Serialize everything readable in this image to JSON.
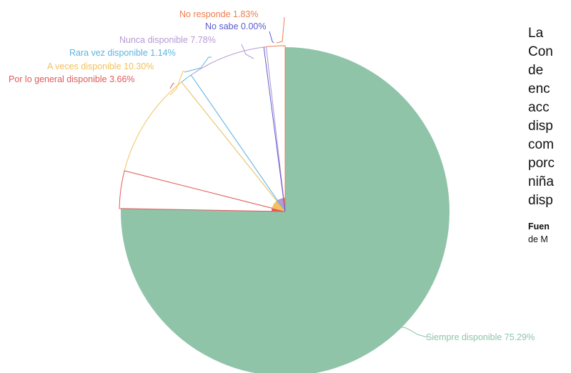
{
  "chart_data": {
    "type": "pie",
    "unit": "%",
    "slices": [
      {
        "label": "Siempre disponible",
        "value": 75.29,
        "color": "#8fc4a9",
        "exploded": false
      },
      {
        "label": "No responde",
        "value": 1.83,
        "color": "#f07d4f",
        "exploded": true
      },
      {
        "label": "No sabe",
        "value": 0.0,
        "color": "#5b5ad3",
        "exploded": true
      },
      {
        "label": "Nunca disponible",
        "value": 7.78,
        "color": "#b49ad6",
        "exploded": true
      },
      {
        "label": "Rara vez disponible",
        "value": 1.14,
        "color": "#5bb5e3",
        "exploded": true
      },
      {
        "label": "A veces disponible",
        "value": 10.3,
        "color": "#f2c15e",
        "exploded": true
      },
      {
        "label": "Por lo general disponible",
        "value": 3.66,
        "color": "#e05a5a",
        "exploded": true
      }
    ],
    "labels": [
      "Siempre disponible 75.29%",
      "No responde 1.83%",
      "No sabe 0.00%",
      "Nunca disponible 7.78%",
      "Rara vez disponible 1.14%",
      "A veces disponible 10.30%",
      "Por lo general disponible 3.66%"
    ]
  },
  "side_text": {
    "body": "La\nCon\nde\nenc\nacc\ndisp\ncom\nporc\nniña\ndisp",
    "source_bold": "Fuen",
    "source_rest": "de M"
  }
}
